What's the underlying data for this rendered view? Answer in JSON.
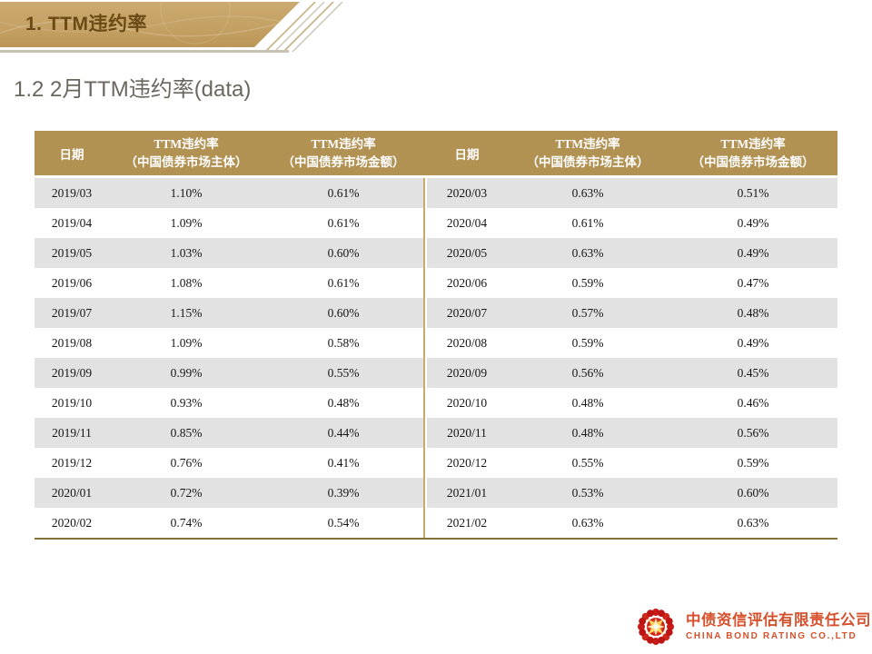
{
  "page": {
    "banner_title": "1. TTM违约率",
    "subtitle": "1.2 2月TTM违约率(data)"
  },
  "table": {
    "header": {
      "date": "日期",
      "rate_line1": "TTM违约率",
      "entity_line2": "（中国债券市场主体）",
      "amount_line2": "（中国债券市场金额）"
    },
    "left_rows": [
      [
        "2019/03",
        "1.10%",
        "0.61%"
      ],
      [
        "2019/04",
        "1.09%",
        "0.61%"
      ],
      [
        "2019/05",
        "1.03%",
        "0.60%"
      ],
      [
        "2019/06",
        "1.08%",
        "0.61%"
      ],
      [
        "2019/07",
        "1.15%",
        "0.60%"
      ],
      [
        "2019/08",
        "1.09%",
        "0.58%"
      ],
      [
        "2019/09",
        "0.99%",
        "0.55%"
      ],
      [
        "2019/10",
        "0.93%",
        "0.48%"
      ],
      [
        "2019/11",
        "0.85%",
        "0.44%"
      ],
      [
        "2019/12",
        "0.76%",
        "0.41%"
      ],
      [
        "2020/01",
        "0.72%",
        "0.39%"
      ],
      [
        "2020/02",
        "0.74%",
        "0.54%"
      ]
    ],
    "right_rows": [
      [
        "2020/03",
        "0.63%",
        "0.51%"
      ],
      [
        "2020/04",
        "0.61%",
        "0.49%"
      ],
      [
        "2020/05",
        "0.63%",
        "0.49%"
      ],
      [
        "2020/06",
        "0.59%",
        "0.47%"
      ],
      [
        "2020/07",
        "0.57%",
        "0.48%"
      ],
      [
        "2020/08",
        "0.59%",
        "0.49%"
      ],
      [
        "2020/09",
        "0.56%",
        "0.45%"
      ],
      [
        "2020/10",
        "0.48%",
        "0.46%"
      ],
      [
        "2020/11",
        "0.48%",
        "0.56%"
      ],
      [
        "2020/12",
        "0.55%",
        "0.59%"
      ],
      [
        "2021/01",
        "0.53%",
        "0.60%"
      ],
      [
        "2021/02",
        "0.63%",
        "0.63%"
      ]
    ]
  },
  "footer": {
    "company_cn": "中债资信评估有限责任公司",
    "company_en": "CHINA BOND RATING CO.,LTD"
  },
  "colors": {
    "banner-gold": "#C4A164",
    "banner-gold-light": "#CBAA70",
    "header-gold": "#B29253",
    "title-brown": "#6B4A15",
    "subtitle-gray": "#6B675F",
    "stripe-gray": "#E2E2E2",
    "divider-tan": "#C8A96F",
    "bottom-olive": "#847339",
    "underline-gray": "#C8C2B5",
    "logo-red": "#D6502B",
    "petal-red": "#C81A17",
    "star-gold": "#FFD75E"
  }
}
